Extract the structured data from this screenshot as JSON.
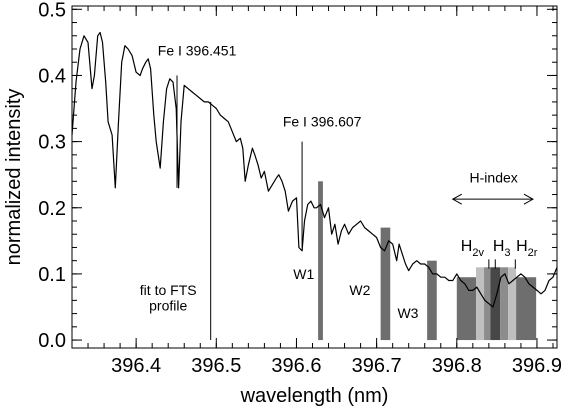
{
  "chart_data": {
    "type": "line",
    "xlabel": "wavelength (nm)",
    "ylabel": "normalized intensity",
    "xlim": [
      396.32,
      396.925
    ],
    "ylim": [
      -0.012,
      0.505
    ],
    "x_ticks": [
      396.4,
      396.5,
      396.6,
      396.7,
      396.8,
      396.9
    ],
    "x_tick_labels": [
      "396.4",
      "396.5",
      "396.6",
      "396.7",
      "396.8",
      "396.9"
    ],
    "y_ticks": [
      0.0,
      0.1,
      0.2,
      0.3,
      0.4,
      0.5
    ],
    "y_tick_labels": [
      "0.0",
      "0.1",
      "0.2",
      "0.3",
      "0.4",
      "0.5"
    ],
    "grid": false,
    "series": [
      {
        "color": "#000000",
        "x": [
          396.32,
          396.325,
          396.33,
          396.335,
          396.34,
          396.345,
          396.348,
          396.352,
          396.355,
          396.358,
          396.362,
          396.365,
          396.37,
          396.374,
          396.378,
          396.382,
          396.386,
          396.39,
          396.395,
          396.4,
          396.405,
          396.408,
          396.412,
          396.415,
          396.418,
          396.422,
          396.425,
          396.43,
          396.434,
          396.438,
          396.442,
          396.446,
          396.45,
          396.453,
          396.456,
          396.46,
          396.465,
          396.47,
          396.475,
          396.48,
          396.485,
          396.49,
          396.495,
          396.5,
          396.505,
          396.51,
          396.515,
          396.52,
          396.525,
          396.53,
          396.533,
          396.536,
          396.54,
          396.545,
          396.548,
          396.552,
          396.556,
          396.56,
          396.565,
          396.57,
          396.575,
          396.578,
          396.582,
          396.586,
          396.59,
          396.595,
          396.6,
          396.603,
          396.607,
          396.61,
          396.614,
          396.618,
          396.622,
          396.625,
          396.63,
          396.635,
          396.64,
          396.644,
          396.648,
          396.652,
          396.656,
          396.66,
          396.665,
          396.67,
          396.675,
          396.68,
          396.685,
          396.69,
          396.695,
          396.7,
          396.705,
          396.71,
          396.715,
          396.72,
          396.725,
          396.728,
          396.732,
          396.736,
          396.74,
          396.745,
          396.75,
          396.755,
          396.76,
          396.765,
          396.77,
          396.775,
          396.78,
          396.785,
          396.79,
          396.795,
          396.8,
          396.805,
          396.81,
          396.815,
          396.82,
          396.825,
          396.83,
          396.835,
          396.84,
          396.845,
          396.85,
          396.855,
          396.86,
          396.865,
          396.87,
          396.875,
          396.88,
          396.885,
          396.89,
          396.895,
          396.9,
          396.905,
          396.91,
          396.915,
          396.92,
          396.925
        ],
        "y": [
          0.31,
          0.39,
          0.44,
          0.46,
          0.45,
          0.38,
          0.4,
          0.46,
          0.465,
          0.45,
          0.39,
          0.33,
          0.31,
          0.23,
          0.33,
          0.42,
          0.445,
          0.44,
          0.43,
          0.405,
          0.4,
          0.41,
          0.42,
          0.425,
          0.41,
          0.34,
          0.3,
          0.26,
          0.33,
          0.38,
          0.395,
          0.39,
          0.35,
          0.23,
          0.33,
          0.385,
          0.38,
          0.375,
          0.37,
          0.365,
          0.36,
          0.36,
          0.355,
          0.35,
          0.34,
          0.335,
          0.33,
          0.315,
          0.3,
          0.305,
          0.29,
          0.24,
          0.265,
          0.29,
          0.28,
          0.265,
          0.245,
          0.255,
          0.225,
          0.235,
          0.245,
          0.25,
          0.24,
          0.225,
          0.195,
          0.21,
          0.215,
          0.14,
          0.135,
          0.18,
          0.205,
          0.21,
          0.2,
          0.2,
          0.205,
          0.185,
          0.2,
          0.16,
          0.175,
          0.145,
          0.165,
          0.175,
          0.16,
          0.17,
          0.175,
          0.18,
          0.17,
          0.165,
          0.16,
          0.155,
          0.14,
          0.135,
          0.15,
          0.145,
          0.12,
          0.145,
          0.13,
          0.115,
          0.105,
          0.115,
          0.12,
          0.115,
          0.115,
          0.11,
          0.1,
          0.1,
          0.095,
          0.095,
          0.09,
          0.09,
          0.1,
          0.09,
          0.085,
          0.075,
          0.075,
          0.08,
          0.07,
          0.06,
          0.055,
          0.05,
          0.07,
          0.095,
          0.1,
          0.085,
          0.09,
          0.095,
          0.1,
          0.095,
          0.085,
          0.08,
          0.075,
          0.07,
          0.075,
          0.09,
          0.095,
          0.11
        ]
      }
    ],
    "bars": [
      {
        "label": "W1",
        "x0": 396.627,
        "x1": 396.633,
        "y0": 0.0,
        "y1": 0.24,
        "color": "#6e6e6e"
      },
      {
        "label": "W2",
        "x0": 396.705,
        "x1": 396.717,
        "y0": 0.0,
        "y1": 0.17,
        "color": "#6e6e6e"
      },
      {
        "label": "W3",
        "x0": 396.763,
        "x1": 396.775,
        "y0": 0.0,
        "y1": 0.12,
        "color": "#6e6e6e"
      },
      {
        "label": "",
        "x0": 396.8,
        "x1": 396.824,
        "y0": 0.0,
        "y1": 0.095,
        "color": "#6e6e6e"
      },
      {
        "label": "",
        "x0": 396.824,
        "x1": 396.834,
        "y0": 0.0,
        "y1": 0.11,
        "color": "#bfbfbf"
      },
      {
        "label": "",
        "x0": 396.834,
        "x1": 396.842,
        "y0": 0.0,
        "y1": 0.11,
        "color": "#8c8c8c"
      },
      {
        "label": "",
        "x0": 396.842,
        "x1": 396.854,
        "y0": 0.0,
        "y1": 0.11,
        "color": "#474747"
      },
      {
        "label": "",
        "x0": 396.854,
        "x1": 396.864,
        "y0": 0.0,
        "y1": 0.11,
        "color": "#8c8c8c"
      },
      {
        "label": "",
        "x0": 396.864,
        "x1": 396.874,
        "y0": 0.0,
        "y1": 0.11,
        "color": "#bfbfbf"
      },
      {
        "label": "",
        "x0": 396.874,
        "x1": 396.899,
        "y0": 0.0,
        "y1": 0.095,
        "color": "#6e6e6e"
      }
    ],
    "vertical_lines": [
      {
        "x": 396.451,
        "y0": 0.23,
        "y1": 0.4,
        "color": "#000000"
      },
      {
        "x": 396.607,
        "y0": 0.14,
        "y1": 0.3,
        "color": "#000000"
      },
      {
        "x": 396.493,
        "y0": 0.0,
        "y1": 0.36,
        "color": "#000000"
      }
    ],
    "annotations": [
      {
        "text": "Fe I 396.451",
        "x": 396.427,
        "y": 0.43
      },
      {
        "text": "Fe I 396.607",
        "x": 396.583,
        "y": 0.323
      },
      {
        "text": "W1",
        "x": 396.596,
        "y": 0.092
      },
      {
        "text": "W2",
        "x": 396.666,
        "y": 0.068
      },
      {
        "text": "W3",
        "x": 396.726,
        "y": 0.033
      },
      {
        "text": "fit to FTS",
        "x": 396.44,
        "y": 0.068
      },
      {
        "text": "profile",
        "x": 396.44,
        "y": 0.045
      },
      {
        "text": "H-index",
        "x": 396.846,
        "y": 0.238
      }
    ],
    "h_index_labels": [
      {
        "main": "H",
        "sub": "2v",
        "x": 396.805,
        "y": 0.135
      },
      {
        "main": "H",
        "sub": "3",
        "x": 396.845,
        "y": 0.135
      },
      {
        "main": "H",
        "sub": "2r",
        "x": 396.874,
        "y": 0.135
      }
    ],
    "h_index_arrow": {
      "x0": 396.795,
      "x1": 396.895,
      "y": 0.213
    },
    "label_connectors": [
      {
        "x": 396.84,
        "y0": 0.108,
        "y1": 0.122
      },
      {
        "x": 396.848,
        "y0": 0.108,
        "y1": 0.122
      },
      {
        "x": 396.873,
        "y0": 0.108,
        "y1": 0.122
      }
    ]
  }
}
